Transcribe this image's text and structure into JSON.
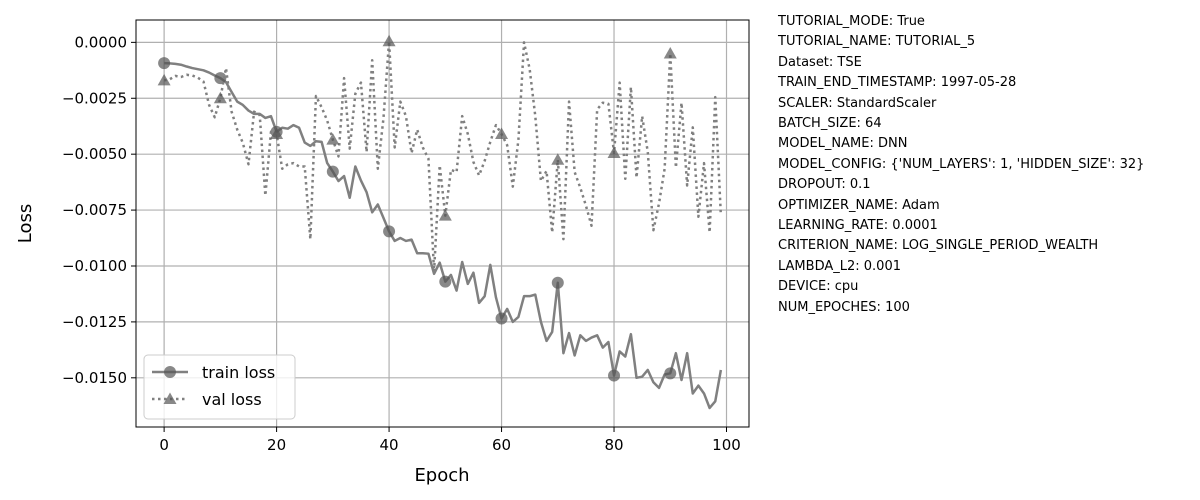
{
  "chart_data": {
    "type": "line",
    "xlabel": "Epoch",
    "ylabel": "Loss",
    "xlim": [
      -5,
      104
    ],
    "ylim": [
      -0.0172,
      0.001
    ],
    "xticks": [
      0,
      20,
      40,
      60,
      80,
      100
    ],
    "yticks": [
      0.0,
      -0.0025,
      -0.005,
      -0.0075,
      -0.01,
      -0.0125,
      -0.015
    ],
    "xtick_labels": [
      "0",
      "20",
      "40",
      "60",
      "80",
      "100"
    ],
    "ytick_labels": [
      "0.0000",
      "−0.0025",
      "−0.0050",
      "−0.0075",
      "−0.0100",
      "−0.0125",
      "−0.0150"
    ],
    "grid": true,
    "legend_position": "lower-left",
    "marker_every": 10,
    "series": [
      {
        "name": "train loss",
        "line_style": "solid",
        "marker": "circle",
        "color": "#808080",
        "values": [
          -0.00093,
          -0.00094,
          -0.00096,
          -0.001,
          -0.00108,
          -0.00115,
          -0.0012,
          -0.00125,
          -0.00135,
          -0.00148,
          -0.0016,
          -0.00178,
          -0.00222,
          -0.00265,
          -0.0028,
          -0.00305,
          -0.0032,
          -0.0032,
          -0.00338,
          -0.0033,
          -0.004,
          -0.00382,
          -0.00386,
          -0.0037,
          -0.00382,
          -0.00448,
          -0.00463,
          -0.00442,
          -0.00445,
          -0.0054,
          -0.00578,
          -0.0062,
          -0.00598,
          -0.00695,
          -0.00555,
          -0.00618,
          -0.0067,
          -0.0076,
          -0.00725,
          -0.00785,
          -0.00845,
          -0.00888,
          -0.00875,
          -0.00888,
          -0.00882,
          -0.00943,
          -0.00943,
          -0.00945,
          -0.01035,
          -0.00985,
          -0.0107,
          -0.0104,
          -0.0111,
          -0.00982,
          -0.0108,
          -0.0103,
          -0.01165,
          -0.01135,
          -0.00995,
          -0.0114,
          -0.01235,
          -0.01192,
          -0.0125,
          -0.01228,
          -0.01135,
          -0.01135,
          -0.01128,
          -0.0125,
          -0.01335,
          -0.01295,
          -0.01075,
          -0.0139,
          -0.013,
          -0.014,
          -0.0131,
          -0.01335,
          -0.0132,
          -0.0131,
          -0.01365,
          -0.0134,
          -0.0149,
          -0.01382,
          -0.01405,
          -0.01305,
          -0.015,
          -0.01495,
          -0.01465,
          -0.0152,
          -0.01545,
          -0.01485,
          -0.0148,
          -0.0139,
          -0.0151,
          -0.0139,
          -0.0157,
          -0.01535,
          -0.0157,
          -0.01635,
          -0.01605,
          -0.01465
        ]
      },
      {
        "name": "val loss",
        "line_style": "dotted",
        "marker": "triangle",
        "color": "#808080",
        "values": [
          -0.0017,
          -0.00165,
          -0.0015,
          -0.00155,
          -0.00145,
          -0.00148,
          -0.00158,
          -0.00175,
          -0.0028,
          -0.00335,
          -0.0025,
          -0.00115,
          -0.0031,
          -0.0039,
          -0.0045,
          -0.00545,
          -0.0031,
          -0.00325,
          -0.00685,
          -0.004,
          -0.0041,
          -0.00565,
          -0.00545,
          -0.0054,
          -0.00555,
          -0.00555,
          -0.0088,
          -0.0024,
          -0.0029,
          -0.0035,
          -0.00435,
          -0.0051,
          -0.0016,
          -0.00475,
          -0.0023,
          -0.0018,
          -0.0049,
          -0.0008,
          -0.00565,
          -0.0034,
          5e-05,
          -0.0047,
          -0.00265,
          -0.0033,
          -0.00495,
          -0.0039,
          -0.0047,
          -0.0052,
          -0.01025,
          -0.0055,
          -0.00775,
          -0.0057,
          -0.0058,
          -0.0033,
          -0.0041,
          -0.00535,
          -0.00595,
          -0.0053,
          -0.00445,
          -0.0037,
          -0.0041,
          -0.0046,
          -0.00645,
          -0.00435,
          0.0,
          -0.0012,
          -0.0033,
          -0.0062,
          -0.00575,
          -0.0085,
          -0.00525,
          -0.0088,
          -0.00265,
          -0.0058,
          -0.0065,
          -0.0073,
          -0.0082,
          -0.003,
          -0.0027,
          -0.00275,
          -0.00495,
          -0.0018,
          -0.0061,
          -0.002,
          -0.00605,
          -0.0033,
          -0.0049,
          -0.0084,
          -0.0072,
          -0.00565,
          -0.0005,
          -0.0056,
          -0.0027,
          -0.0064,
          -0.0038,
          -0.0078,
          -0.0054,
          -0.0085,
          -0.00245,
          -0.00775
        ]
      }
    ]
  },
  "config_lines": [
    "TUTORIAL_MODE: True",
    "TUTORIAL_NAME: TUTORIAL_5",
    "Dataset: TSE",
    "TRAIN_END_TIMESTAMP: 1997-05-28",
    "SCALER: StandardScaler",
    "BATCH_SIZE: 64",
    "MODEL_NAME: DNN",
    "MODEL_CONFIG: {'NUM_LAYERS': 1, 'HIDDEN_SIZE': 32}",
    "DROPOUT: 0.1",
    "OPTIMIZER_NAME: Adam",
    "LEARNING_RATE: 0.0001",
    "CRITERION_NAME: LOG_SINGLE_PERIOD_WEALTH",
    "LAMBDA_L2: 0.001",
    "DEVICE: cpu",
    "NUM_EPOCHES: 100"
  ]
}
